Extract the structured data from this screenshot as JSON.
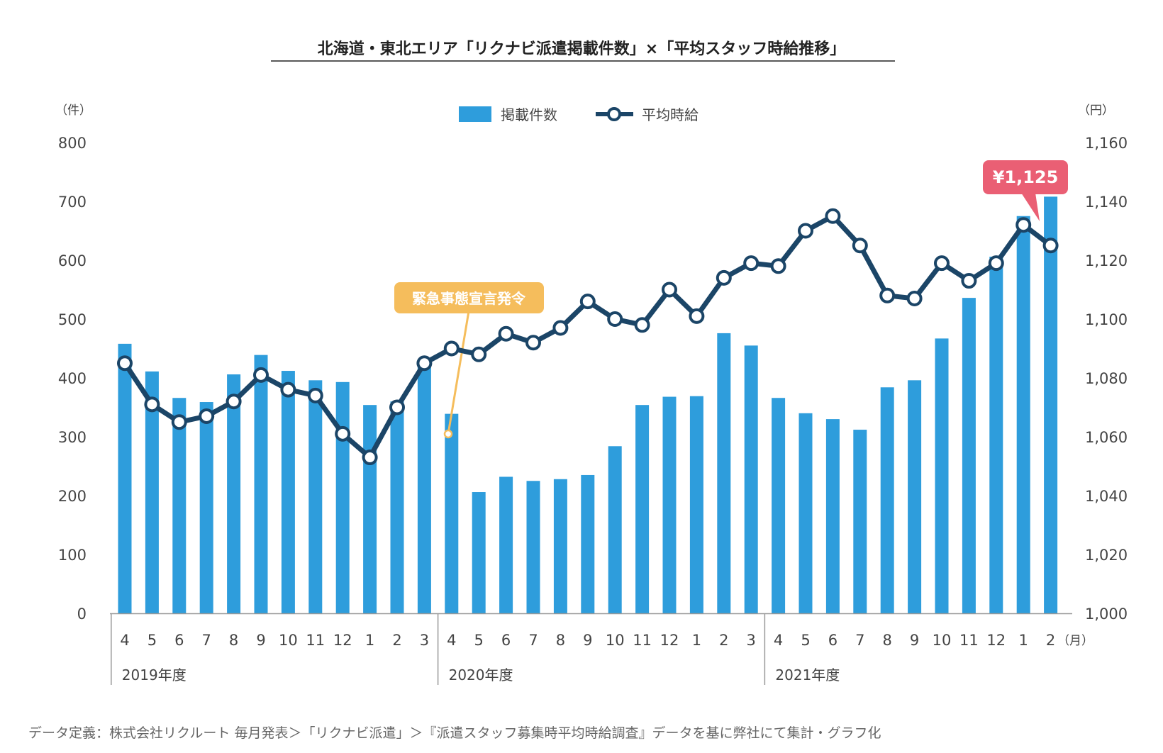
{
  "title": "北海道・東北エリア「リクナビ派遣掲載件数」×「平均スタッフ時給推移」",
  "left_unit": "（件）",
  "right_unit": "（円）",
  "month_unit": "（月）",
  "legend": {
    "bars": "掲載件数",
    "line": "平均時給"
  },
  "annotation_event": "緊急事態宣言発令",
  "annotation_peak": "¥1,125",
  "footnote": "データ定義：株式会社リクルート 毎月発表＞「リクナビ派遣」＞『派遣スタッフ募集時平均時給調査』データを基に弊社にて集計・グラフ化",
  "colors": {
    "bar": "#2e9ddc",
    "line": "#1b4567",
    "event": "#f5bd5c",
    "peak": "#ea5f74"
  },
  "chart_data": {
    "type": "bar",
    "title": "北海道・東北エリア「リクナビ派遣掲載件数」×「平均スタッフ時給推移」",
    "categories": [
      "4",
      "5",
      "6",
      "7",
      "8",
      "9",
      "10",
      "11",
      "12",
      "1",
      "2",
      "3",
      "4",
      "5",
      "6",
      "7",
      "8",
      "9",
      "10",
      "11",
      "12",
      "1",
      "2",
      "3",
      "4",
      "5",
      "6",
      "7",
      "8",
      "9",
      "10",
      "11",
      "12",
      "1",
      "2"
    ],
    "groups": [
      {
        "label": "2019年度",
        "start": 0,
        "end": 11
      },
      {
        "label": "2020年度",
        "start": 12,
        "end": 23
      },
      {
        "label": "2021年度",
        "start": 24,
        "end": 34
      }
    ],
    "series": [
      {
        "name": "掲載件数",
        "axis": "left",
        "type": "bar",
        "values": [
          458,
          411,
          366,
          359,
          406,
          439,
          412,
          396,
          393,
          354,
          360,
          419,
          339,
          206,
          232,
          225,
          228,
          235,
          284,
          354,
          368,
          369,
          476,
          455,
          366,
          340,
          330,
          312,
          384,
          396,
          467,
          536,
          606,
          675,
          708
        ]
      },
      {
        "name": "平均時給",
        "axis": "right",
        "type": "line",
        "values": [
          1085,
          1071,
          1065,
          1067,
          1072,
          1081,
          1076,
          1074,
          1061,
          1053,
          1070,
          1085,
          1090,
          1088,
          1095,
          1092,
          1097,
          1106,
          1100,
          1098,
          1110,
          1101,
          1114,
          1119,
          1118,
          1130,
          1135,
          1125,
          1108,
          1107,
          1119,
          1113,
          1119,
          1132,
          1125
        ]
      }
    ],
    "left_ticks": [
      "0",
      "100",
      "200",
      "300",
      "400",
      "500",
      "600",
      "700",
      "800"
    ],
    "right_ticks": [
      "1,000",
      "1,020",
      "1,040",
      "1,060",
      "1,080",
      "1,100",
      "1,120",
      "1,140",
      "1,160"
    ],
    "ylim_left": [
      0,
      800
    ],
    "ylim_right": [
      1000,
      1160
    ],
    "legend_position": "top-center",
    "grid": false
  }
}
